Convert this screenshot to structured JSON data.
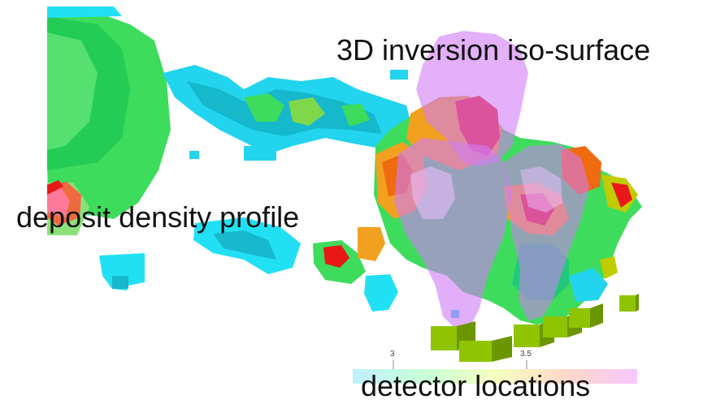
{
  "labels": {
    "iso_surface": "3D inversion iso-surface",
    "density_profile": "deposit density profile",
    "detectors": "detector locations"
  },
  "colorbar": {
    "tick_labels": [
      "3",
      "3.5"
    ],
    "gradient_colors": [
      "#bff0ff",
      "#c8ffd8",
      "#f6ffc0",
      "#ffd8c8",
      "#f6c8ff"
    ]
  },
  "colors": {
    "background": "#ffffff",
    "iso_surface": "#d07cf5",
    "detector": "#8fc400",
    "voxel_palette": [
      "#22e0f4",
      "#3ddc5c",
      "#7fd84a",
      "#f2a020",
      "#f06a10",
      "#e81818",
      "#c0cc00"
    ]
  }
}
